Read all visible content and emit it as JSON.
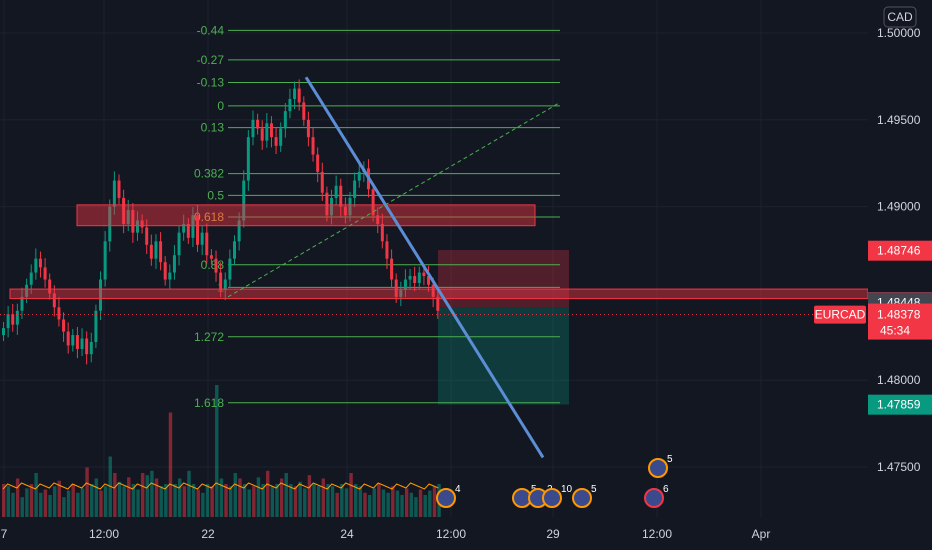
{
  "chart_data": {
    "type": "candlestick",
    "symbol": "EURCAD",
    "currency": "CAD",
    "y_range": [
      1.4715,
      1.5017
    ],
    "y_ticks": [
      "1.50000",
      "1.49500",
      "1.49000",
      "1.48000",
      "1.47500"
    ],
    "x_ticks": [
      "7",
      "12:00",
      "22",
      "24",
      "12:00",
      "29",
      "12:00",
      "Apr"
    ],
    "price_tags": [
      {
        "label": "1.48746",
        "value": 1.48746,
        "color": "#f23645"
      },
      {
        "label": "1.48450",
        "value": 1.4845,
        "color": "#f23645"
      },
      {
        "label": "1.48448",
        "value": 1.48448,
        "color": "#434651"
      },
      {
        "label": "1.48378",
        "value": 1.48378,
        "color": "#f23645"
      },
      {
        "label": "1.47859",
        "value": 1.47859,
        "color": "#089981"
      }
    ],
    "current_price": {
      "symbol_label": "EURCAD",
      "value": "1.48378",
      "countdown": "45:34"
    },
    "fib_levels": [
      {
        "label": "-0.44",
        "value": 1.50015
      },
      {
        "label": "-0.27",
        "value": 1.49845
      },
      {
        "label": "-0.13",
        "value": 1.49715
      },
      {
        "label": "0",
        "value": 1.4958
      },
      {
        "label": "0.13",
        "value": 1.49455
      },
      {
        "label": "0.382",
        "value": 1.4919
      },
      {
        "label": "0.5",
        "value": 1.49065
      },
      {
        "label": "0.618",
        "value": 1.4894
      },
      {
        "label": "0.88",
        "value": 1.48665
      },
      {
        "label": "1",
        "value": 1.48535
      },
      {
        "label": "1.272",
        "value": 1.4825
      },
      {
        "label": "1.618",
        "value": 1.4787
      }
    ],
    "zones": [
      {
        "name": "upper-resistance-zone",
        "y_top": 1.4901,
        "y_bottom": 1.4889
      },
      {
        "name": "lower-support-zone",
        "y_top": 1.48525,
        "y_bottom": 1.4847
      }
    ],
    "candles_close": [
      1.483,
      1.4838,
      1.4832,
      1.484,
      1.4848,
      1.4855,
      1.4862,
      1.487,
      1.4865,
      1.4858,
      1.485,
      1.4842,
      1.4835,
      1.4828,
      1.482,
      1.4826,
      1.4818,
      1.4824,
      1.4815,
      1.4822,
      1.484,
      1.4858,
      1.488,
      1.49,
      1.4915,
      1.4905,
      1.489,
      1.4898,
      1.4885,
      1.4892,
      1.4888,
      1.4878,
      1.487,
      1.488,
      1.4868,
      1.4858,
      1.4862,
      1.4872,
      1.4885,
      1.489,
      1.4882,
      1.4895,
      1.4878,
      1.4885,
      1.4872,
      1.487,
      1.4862,
      1.4852,
      1.4858,
      1.487,
      1.488,
      1.4892,
      1.4915,
      1.494,
      1.495,
      1.4945,
      1.4938,
      1.4948,
      1.494,
      1.4935,
      1.4945,
      1.4955,
      1.4962,
      1.4968,
      1.496,
      1.495,
      1.494,
      1.493,
      1.492,
      1.4908,
      1.4895,
      1.4905,
      1.4912,
      1.49,
      1.4895,
      1.4905,
      1.4915,
      1.492,
      1.4922,
      1.491,
      1.4895,
      1.489,
      1.488,
      1.487,
      1.4858,
      1.4848,
      1.4852,
      1.4858,
      1.486,
      1.4856,
      1.4862,
      1.486,
      1.4855,
      1.4848,
      1.484
    ],
    "volumes": [
      30,
      28,
      22,
      35,
      18,
      26,
      30,
      40,
      22,
      25,
      20,
      28,
      33,
      18,
      24,
      30,
      22,
      26,
      45,
      30,
      35,
      24,
      28,
      55,
      40,
      32,
      28,
      36,
      30,
      25,
      40,
      38,
      42,
      35,
      28,
      30,
      95,
      30,
      35,
      28,
      42,
      30,
      25,
      22,
      30,
      28,
      120,
      35,
      30,
      28,
      40,
      35,
      30,
      25,
      28,
      36,
      30,
      42,
      28,
      30,
      35,
      40,
      30,
      28,
      32,
      26,
      38,
      30,
      28,
      35,
      30,
      28,
      22,
      30,
      26,
      40,
      30,
      28,
      22,
      20,
      26,
      30,
      25,
      22,
      28,
      24,
      20,
      26,
      22,
      18,
      25,
      20,
      24,
      28,
      30
    ]
  },
  "event_badges": [
    {
      "count": "4"
    },
    {
      "count": "5"
    },
    {
      "count": "2"
    },
    {
      "count": "10"
    },
    {
      "count": "5"
    },
    {
      "count": "5"
    },
    {
      "count": "6"
    }
  ]
}
